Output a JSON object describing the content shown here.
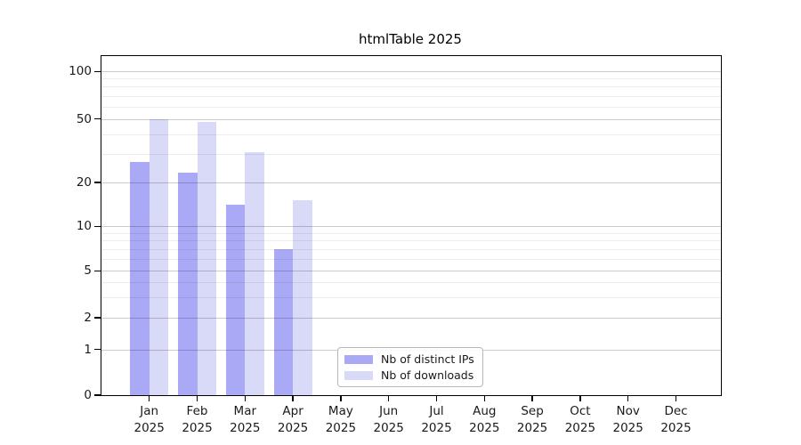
{
  "chart_data": {
    "type": "bar",
    "title": "htmlTable 2025",
    "categories": [
      "Jan",
      "Feb",
      "Mar",
      "Apr",
      "May",
      "Jun",
      "Jul",
      "Aug",
      "Sep",
      "Oct",
      "Nov",
      "Dec"
    ],
    "x_year_label": "2025",
    "series": [
      {
        "name": "Nb of distinct IPs",
        "color": "#a9a9f5",
        "values": [
          27,
          23,
          14,
          7,
          0,
          0,
          0,
          0,
          0,
          0,
          0,
          0
        ]
      },
      {
        "name": "Nb of downloads",
        "color": "#d9d9f8",
        "values": [
          50,
          48,
          31,
          15,
          0,
          0,
          0,
          0,
          0,
          0,
          0,
          0
        ]
      }
    ],
    "yaxis": {
      "scale": "symlog",
      "ticks": [
        0,
        1,
        2,
        5,
        10,
        20,
        50,
        100
      ],
      "minor_ticks": [
        3,
        4,
        6,
        7,
        8,
        9,
        30,
        40,
        60,
        70,
        80,
        90
      ],
      "range": [
        0,
        130
      ]
    },
    "legend": {
      "position": "bottom-center-inside",
      "entries": [
        "Nb of distinct IPs",
        "Nb of downloads"
      ]
    },
    "grid": true,
    "grid_above_bars": true
  },
  "colors": {
    "series_distinct_ips": "#a9a9f5",
    "series_downloads": "#d9d9f8",
    "axis": "#000000",
    "text": "#1a1a1a",
    "grid_major": "#cccccc",
    "grid_minor": "#ececec",
    "legend_border": "#b8b8b8",
    "background": "#ffffff"
  }
}
